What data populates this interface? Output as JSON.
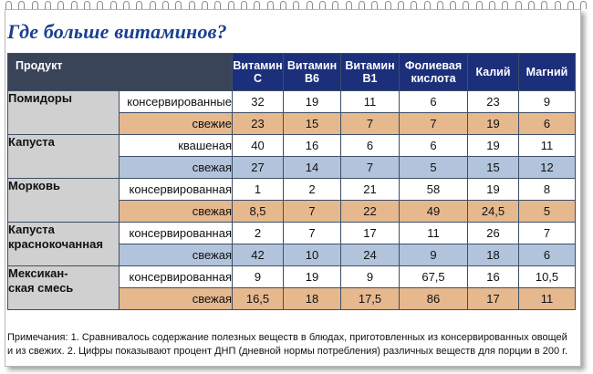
{
  "title": "Где больше витаминов?",
  "columns": [
    "Продукт",
    "Витамин C",
    "Витамин B6",
    "Витамин B1",
    "Фолиевая кислота",
    "Калий",
    "Магний"
  ],
  "header_lines": {
    "vitc": [
      "Витамин",
      "C"
    ],
    "vitb6": [
      "Витамин",
      "B6"
    ],
    "vitb1": [
      "Витамин",
      "B1"
    ],
    "folic": [
      "Фолиевая",
      "кислота"
    ]
  },
  "products": [
    {
      "name": "Помидоры",
      "rows": [
        {
          "variant": "консервированные",
          "values": [
            "32",
            "19",
            "11",
            "6",
            "23",
            "9"
          ]
        },
        {
          "variant": "свежие",
          "values": [
            "23",
            "15",
            "7",
            "7",
            "19",
            "6"
          ]
        }
      ]
    },
    {
      "name": "Капуста",
      "rows": [
        {
          "variant": "квашеная",
          "values": [
            "40",
            "16",
            "6",
            "6",
            "19",
            "11"
          ]
        },
        {
          "variant": "свежая",
          "values": [
            "27",
            "14",
            "7",
            "5",
            "15",
            "12"
          ]
        }
      ]
    },
    {
      "name": "Морковь",
      "rows": [
        {
          "variant": "консервированная",
          "values": [
            "1",
            "2",
            "21",
            "58",
            "19",
            "8"
          ]
        },
        {
          "variant": "свежая",
          "values": [
            "8,5",
            "7",
            "22",
            "49",
            "24,5",
            "5"
          ]
        }
      ]
    },
    {
      "name": "Капуста краснокочанная",
      "name_lines": [
        "Капуста",
        "краснокочанная"
      ],
      "rows": [
        {
          "variant": "консервированная",
          "values": [
            "2",
            "7",
            "17",
            "11",
            "26",
            "7"
          ]
        },
        {
          "variant": "свежая",
          "values": [
            "42",
            "10",
            "24",
            "9",
            "18",
            "6"
          ]
        }
      ]
    },
    {
      "name": "Мексиканская смесь",
      "name_lines": [
        "Мексикан-",
        "ская смесь"
      ],
      "rows": [
        {
          "variant": "консервированная",
          "values": [
            "9",
            "19",
            "9",
            "67,5",
            "16",
            "10,5"
          ]
        },
        {
          "variant": "свежая",
          "values": [
            "16,5",
            "18",
            "17,5",
            "86",
            "17",
            "11"
          ]
        }
      ]
    }
  ],
  "notes": "Примечания: 1. Сравнивалось содержание полезных веществ в блюдах, приготовленных из консервированных овощей и из свежих. 2. Цифры показывают процент ДНП (дневной нормы потребления) различных веществ для порции в 200 г.",
  "colors": {
    "header_bg": "#1c2f7a",
    "title": "#1a3f8f",
    "row_tan": "#e6b88d",
    "row_blue": "#b2c4dc",
    "product_cell": "#d0d0d0"
  }
}
